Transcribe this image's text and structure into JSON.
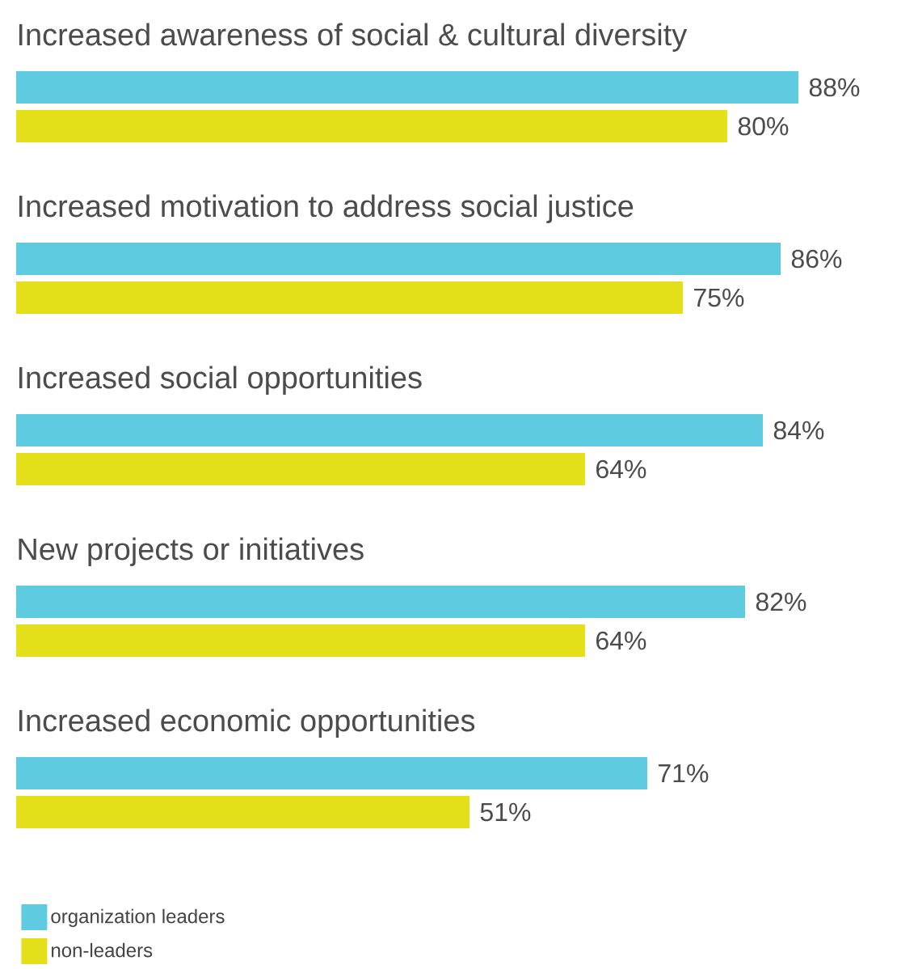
{
  "chart_data": {
    "type": "bar",
    "orientation": "horizontal",
    "categories": [
      "Increased awareness of social & cultural diversity",
      "Increased motivation to address social justice",
      "Increased social opportunities",
      "New projects or initiatives",
      "Increased economic opportunities"
    ],
    "series": [
      {
        "name": "organization leaders",
        "color": "#5ecbe0",
        "values": [
          88,
          86,
          84,
          82,
          71
        ],
        "value_labels": [
          "88%",
          "86%",
          "84%",
          "82%",
          "71%"
        ]
      },
      {
        "name": "non-leaders",
        "color": "#e3e01a",
        "values": [
          80,
          75,
          64,
          64,
          51
        ],
        "value_labels": [
          "80%",
          "75%",
          "64%",
          "64%",
          "51%"
        ]
      }
    ],
    "legend": "bottom left"
  }
}
